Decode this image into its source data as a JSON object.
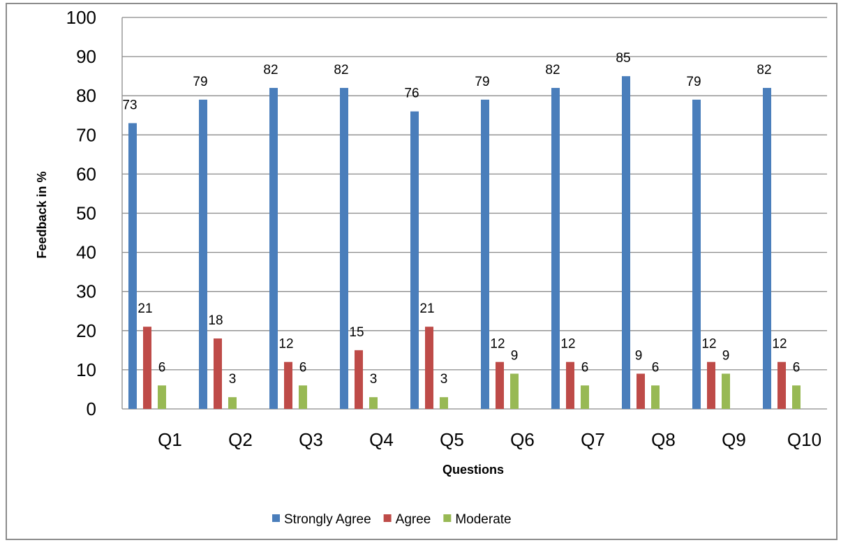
{
  "chart_data": {
    "type": "bar",
    "title": "",
    "xlabel": "Questions",
    "ylabel": "Feedback in %",
    "ylim": [
      0,
      100
    ],
    "yticks": [
      0,
      10,
      20,
      30,
      40,
      50,
      60,
      70,
      80,
      90,
      100
    ],
    "grid": true,
    "legend_position": "bottom",
    "categories": [
      "Q1",
      "Q2",
      "Q3",
      "Q4",
      "Q5",
      "Q6",
      "Q7",
      "Q8",
      "Q9",
      "Q10"
    ],
    "series": [
      {
        "name": "Strongly Agree",
        "color": "#4a7ebb",
        "values": [
          73,
          79,
          82,
          82,
          76,
          79,
          82,
          85,
          79,
          82
        ]
      },
      {
        "name": "Agree",
        "color": "#be4b48",
        "values": [
          21,
          18,
          12,
          15,
          21,
          12,
          12,
          9,
          12,
          12
        ]
      },
      {
        "name": "Moderate",
        "color": "#98b954",
        "values": [
          6,
          3,
          6,
          3,
          3,
          9,
          6,
          6,
          9,
          6
        ]
      }
    ]
  }
}
